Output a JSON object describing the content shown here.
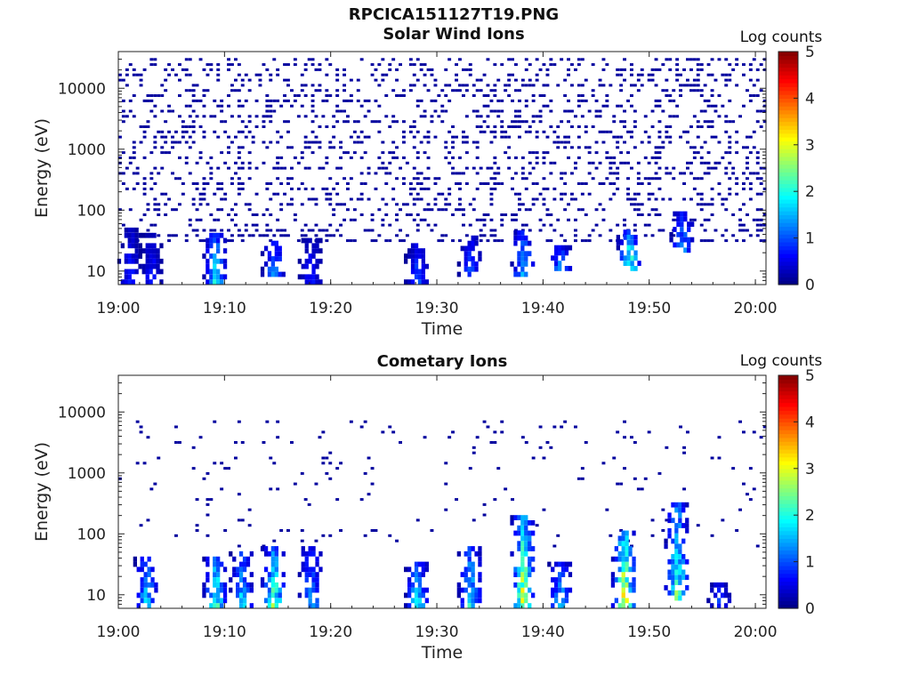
{
  "figure": {
    "filename": "RPCICA151127T19.PNG"
  },
  "chart_data": [
    {
      "type": "heatmap",
      "title": "Solar Wind Ions",
      "xlabel": "Time",
      "ylabel": "Energy (eV)",
      "x_ticks": [
        "19:00",
        "19:10",
        "19:20",
        "19:30",
        "19:40",
        "19:50",
        "20:00"
      ],
      "x_range": [
        "19:00",
        "20:01"
      ],
      "y_scale": "log",
      "y_ticks": [
        10,
        100,
        1000,
        10000
      ],
      "y_tick_labels": [
        "10",
        "100",
        "1000",
        "10000"
      ],
      "ylim": [
        6,
        40000
      ],
      "colorbar": {
        "label": "Log counts",
        "range": [
          0,
          5
        ],
        "ticks": [
          "0",
          "1",
          "2",
          "3",
          "4",
          "5"
        ]
      },
      "background_noise": {
        "energy_range_eV": [
          30,
          30000
        ],
        "level": 0.15,
        "density": "high"
      },
      "bursts": [
        {
          "time": "19:01",
          "e_min": 6,
          "e_max": 45,
          "level": 0.9
        },
        {
          "time": "19:03",
          "e_min": 6,
          "e_max": 40,
          "level": 0.9
        },
        {
          "time": "19:09",
          "e_min": 6,
          "e_max": 40,
          "level": 2.2
        },
        {
          "time": "19:14.5",
          "e_min": 8,
          "e_max": 30,
          "level": 1.7
        },
        {
          "time": "19:18",
          "e_min": 6,
          "e_max": 30,
          "level": 1.0
        },
        {
          "time": "19:28",
          "e_min": 6,
          "e_max": 25,
          "level": 1.2
        },
        {
          "time": "19:33",
          "e_min": 8,
          "e_max": 35,
          "level": 1.2
        },
        {
          "time": "19:38",
          "e_min": 8,
          "e_max": 40,
          "level": 2.0
        },
        {
          "time": "19:41.5",
          "e_min": 10,
          "e_max": 25,
          "level": 1.5
        },
        {
          "time": "19:48",
          "e_min": 10,
          "e_max": 45,
          "level": 2.8
        },
        {
          "time": "19:53",
          "e_min": 20,
          "e_max": 90,
          "level": 1.6
        }
      ]
    },
    {
      "type": "heatmap",
      "title": "Cometary Ions",
      "xlabel": "Time",
      "ylabel": "Energy (eV)",
      "x_ticks": [
        "19:00",
        "19:10",
        "19:20",
        "19:30",
        "19:40",
        "19:50",
        "20:00"
      ],
      "x_range": [
        "19:00",
        "20:01"
      ],
      "y_scale": "log",
      "y_ticks": [
        10,
        100,
        1000,
        10000
      ],
      "y_tick_labels": [
        "10",
        "100",
        "1000",
        "10000"
      ],
      "ylim": [
        6,
        40000
      ],
      "colorbar": {
        "label": "Log counts",
        "range": [
          0,
          5
        ],
        "ticks": [
          "0",
          "1",
          "2",
          "3",
          "4",
          "5"
        ]
      },
      "background_noise": {
        "energy_range_eV": [
          60,
          8000
        ],
        "level": 0.15,
        "density": "low"
      },
      "bursts": [
        {
          "time": "19:02.5",
          "e_min": 6,
          "e_max": 40,
          "level": 2.1
        },
        {
          "time": "19:09",
          "e_min": 6,
          "e_max": 40,
          "level": 2.8
        },
        {
          "time": "19:11.5",
          "e_min": 6,
          "e_max": 50,
          "level": 2.0
        },
        {
          "time": "19:14.5",
          "e_min": 6,
          "e_max": 60,
          "level": 2.9
        },
        {
          "time": "19:18",
          "e_min": 6,
          "e_max": 60,
          "level": 1.8
        },
        {
          "time": "19:28",
          "e_min": 6,
          "e_max": 30,
          "level": 2.2
        },
        {
          "time": "19:33",
          "e_min": 6,
          "e_max": 60,
          "level": 2.2
        },
        {
          "time": "19:38",
          "e_min": 6,
          "e_max": 200,
          "level": 3.5
        },
        {
          "time": "19:41.5",
          "e_min": 6,
          "e_max": 30,
          "level": 2.0
        },
        {
          "time": "19:47.5",
          "e_min": 6,
          "e_max": 100,
          "level": 3.8
        },
        {
          "time": "19:52.5",
          "e_min": 8,
          "e_max": 300,
          "level": 2.8
        },
        {
          "time": "19:56.5",
          "e_min": 6,
          "e_max": 15,
          "level": 1.2
        }
      ]
    }
  ]
}
